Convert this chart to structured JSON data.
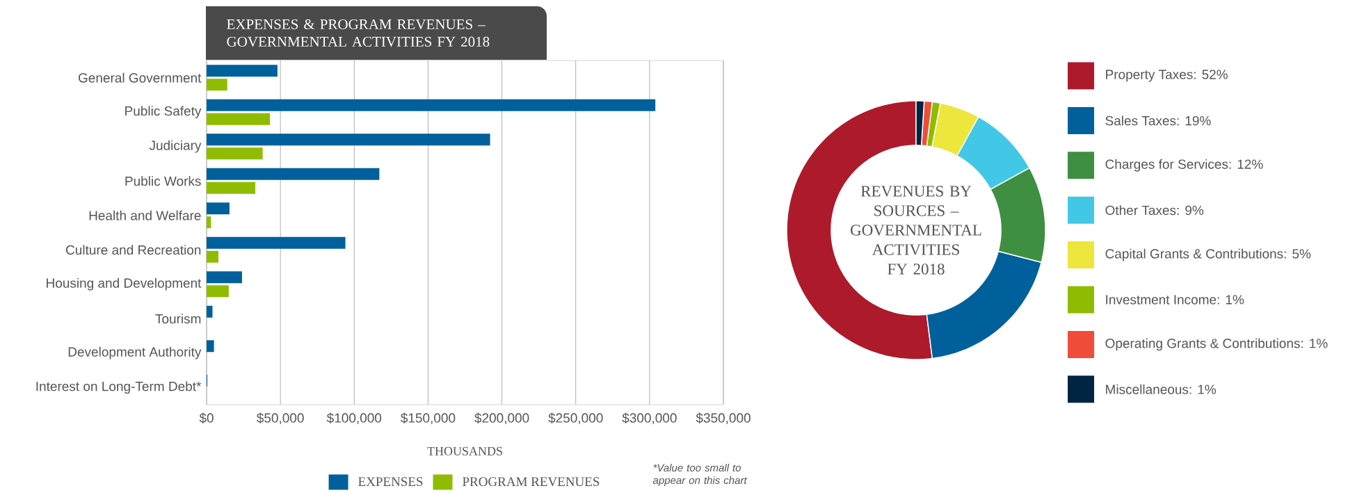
{
  "chart_data": [
    {
      "type": "bar",
      "orientation": "horizontal",
      "title": "EXPENSES & PROGRAM REVENUES – GOVERNMENTAL ACTIVITIES FY 2018",
      "xlabel": "THOUSANDS",
      "categories": [
        "General Government",
        "Public Safety",
        "Judiciary",
        "Public Works",
        "Health and Welfare",
        "Culture and Recreation",
        "Housing and Development",
        "Tourism",
        "Development Authority",
        "Interest on Long-Term Debt*"
      ],
      "series": [
        {
          "name": "EXPENSES",
          "color": "#00609b",
          "values": [
            48000,
            304000,
            192000,
            117000,
            15500,
            94000,
            24000,
            4000,
            5000,
            500
          ]
        },
        {
          "name": "PROGRAM REVENUES",
          "color": "#8fbc00",
          "values": [
            14000,
            43000,
            38000,
            33000,
            3000,
            8000,
            15000,
            0,
            0,
            0
          ]
        }
      ],
      "xlim": [
        0,
        350000
      ],
      "xticks": [
        {
          "value": 0,
          "label": "$0"
        },
        {
          "value": 50000,
          "label": "$50,000"
        },
        {
          "value": 100000,
          "label": "$100,000"
        },
        {
          "value": 150000,
          "label": "$150,000"
        },
        {
          "value": 200000,
          "label": "$200,000"
        },
        {
          "value": 250000,
          "label": "$250,000"
        },
        {
          "value": 300000,
          "label": "$300,000"
        },
        {
          "value": 350000,
          "label": "$350,000"
        }
      ],
      "grid": "x",
      "legend": "bottom",
      "annotations": [
        "*Value too small to appear on this chart"
      ]
    },
    {
      "type": "donut",
      "title": "REVENUES BY SOURCES – GOVERNMENTAL ACTIVITIES FY 2018",
      "categories": [
        "Property Taxes: 52%",
        "Sales Taxes: 19%",
        "Charges for Services: 12%",
        "Other Taxes: 9%",
        "Capital Grants & Contributions: 5%",
        "Investment Income: 1%",
        "Operating Grants & Contributions: 1%",
        "Miscellaneous: 1%"
      ],
      "values": [
        52,
        19,
        12,
        9,
        5,
        1,
        1,
        1
      ],
      "colors": [
        "#ad1a2c",
        "#00609b",
        "#3f8f43",
        "#42c8e6",
        "#ede63c",
        "#8fbc00",
        "#ef4d3a",
        "#002441"
      ],
      "legend": "right"
    }
  ]
}
